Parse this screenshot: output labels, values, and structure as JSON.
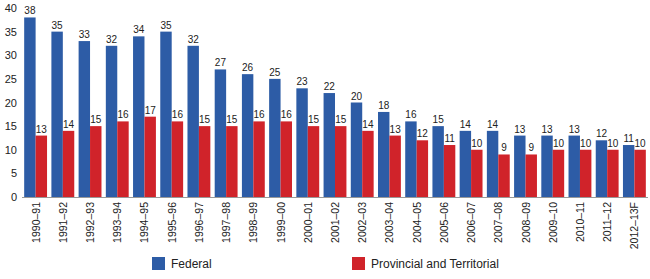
{
  "chart_data": {
    "type": "bar",
    "categories": [
      "1990–91",
      "1991–92",
      "1992–93",
      "1993–94",
      "1994–95",
      "1995–96",
      "1996–97",
      "1997–98",
      "1998–99",
      "1999–00",
      "2000–01",
      "2001–02",
      "2002–03",
      "2003–04",
      "2004–05",
      "2005–06",
      "2006–07",
      "2007–08",
      "2008–09",
      "2009–10",
      "2010–11",
      "2011–12",
      "2012–13F"
    ],
    "series": [
      {
        "name": "Federal",
        "color": "#2d5ca6",
        "values": [
          38,
          35,
          33,
          32,
          34,
          35,
          32,
          27,
          26,
          25,
          23,
          22,
          20,
          18,
          16,
          15,
          14,
          14,
          13,
          13,
          13,
          12,
          11
        ]
      },
      {
        "name": "Provincial and Territorial",
        "color": "#d0232a",
        "values": [
          13,
          14,
          15,
          16,
          17,
          16,
          15,
          15,
          16,
          16,
          15,
          15,
          14,
          13,
          12,
          11,
          10,
          9,
          9,
          10,
          10,
          10,
          10
        ]
      }
    ],
    "ylim": [
      0,
      40
    ],
    "yticks": [
      0,
      5,
      10,
      15,
      20,
      25,
      30,
      35,
      40
    ],
    "grid": false,
    "data_labels": true,
    "legend": "bottom"
  }
}
